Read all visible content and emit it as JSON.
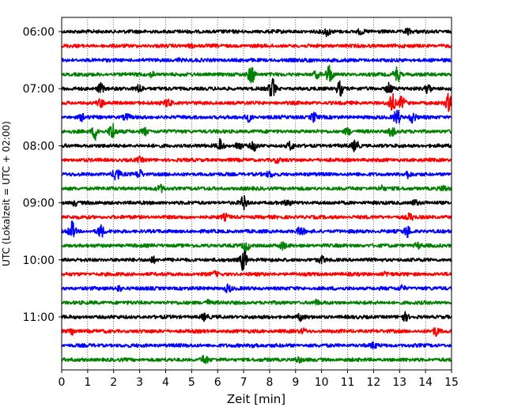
{
  "chart_data": {
    "type": "line",
    "title": "",
    "xlabel": "Zeit  [min]",
    "ylabel": "UTC (Lokalzeit = UTC + 02:00)",
    "xlim": [
      0,
      15
    ],
    "x_ticks": [
      "0",
      "1",
      "2",
      "3",
      "4",
      "5",
      "6",
      "7",
      "8",
      "9",
      "10",
      "11",
      "12",
      "13",
      "14",
      "15"
    ],
    "y_ticks": [
      "06:00",
      "07:00",
      "08:00",
      "09:00",
      "10:00",
      "11:00"
    ],
    "grid": "vertical dotted lines at each minute",
    "trace_interval_minutes": 15,
    "trace_colors": [
      "#000000",
      "#ff0000",
      "#0000ff",
      "#008000"
    ],
    "series": [
      {
        "start": "06:00",
        "color": "#000000",
        "events": [
          [
            10.2,
            0.6
          ],
          [
            11.5,
            0.35
          ],
          [
            13.3,
            0.45
          ]
        ]
      },
      {
        "start": "06:15",
        "color": "#ff0000",
        "events": [
          [
            5.0,
            0.25
          ]
        ]
      },
      {
        "start": "06:30",
        "color": "#0000ff",
        "events": [
          [
            4.5,
            0.2
          ],
          [
            9.5,
            0.2
          ]
        ]
      },
      {
        "start": "06:45",
        "color": "#008000",
        "events": [
          [
            7.3,
            1.6
          ],
          [
            10.3,
            1.5
          ],
          [
            12.9,
            1.3
          ],
          [
            3.5,
            0.4
          ],
          [
            9.8,
            0.5
          ]
        ]
      },
      {
        "start": "07:00",
        "color": "#000000",
        "events": [
          [
            1.5,
            0.8
          ],
          [
            3.0,
            0.7
          ],
          [
            8.1,
            1.6
          ],
          [
            10.7,
            1.2
          ],
          [
            12.6,
            0.9
          ],
          [
            14.1,
            0.7
          ]
        ]
      },
      {
        "start": "07:15",
        "color": "#ff0000",
        "events": [
          [
            1.5,
            0.6
          ],
          [
            4.1,
            0.7
          ],
          [
            12.7,
            1.5
          ],
          [
            13.1,
            1.0
          ],
          [
            14.9,
            1.4
          ]
        ]
      },
      {
        "start": "07:30",
        "color": "#0000ff",
        "events": [
          [
            0.8,
            0.5
          ],
          [
            2.5,
            0.5
          ],
          [
            7.2,
            0.6
          ],
          [
            9.7,
            0.7
          ],
          [
            12.9,
            1.3
          ],
          [
            13.5,
            0.8
          ]
        ]
      },
      {
        "start": "07:45",
        "color": "#008000",
        "events": [
          [
            1.3,
            1.3
          ],
          [
            1.95,
            1.4
          ],
          [
            3.2,
            0.6
          ],
          [
            11.0,
            0.5
          ],
          [
            12.7,
            0.8
          ]
        ]
      },
      {
        "start": "08:00",
        "color": "#000000",
        "events": [
          [
            6.1,
            1.0
          ],
          [
            6.8,
            0.6
          ],
          [
            7.4,
            0.7
          ],
          [
            8.8,
            0.6
          ],
          [
            11.3,
            0.9
          ]
        ]
      },
      {
        "start": "08:15",
        "color": "#ff0000",
        "events": [
          [
            3.0,
            0.3
          ],
          [
            8.3,
            0.3
          ]
        ]
      },
      {
        "start": "08:30",
        "color": "#0000ff",
        "events": [
          [
            2.1,
            1.2
          ],
          [
            3.0,
            0.7
          ],
          [
            8.0,
            0.4
          ],
          [
            13.3,
            0.5
          ]
        ]
      },
      {
        "start": "08:45",
        "color": "#008000",
        "events": [
          [
            3.8,
            0.5
          ],
          [
            12.3,
            0.4
          ],
          [
            14.7,
            0.4
          ]
        ]
      },
      {
        "start": "09:00",
        "color": "#000000",
        "events": [
          [
            0.5,
            0.4
          ],
          [
            7.0,
            1.0
          ],
          [
            8.7,
            0.4
          ],
          [
            13.6,
            0.4
          ]
        ]
      },
      {
        "start": "09:15",
        "color": "#ff0000",
        "events": [
          [
            6.3,
            0.4
          ],
          [
            13.4,
            0.5
          ]
        ]
      },
      {
        "start": "09:30",
        "color": "#0000ff",
        "events": [
          [
            0.4,
            1.5
          ],
          [
            1.5,
            1.0
          ],
          [
            9.2,
            0.7
          ],
          [
            13.3,
            0.9
          ]
        ]
      },
      {
        "start": "09:45",
        "color": "#008000",
        "events": [
          [
            7.1,
            0.8
          ],
          [
            8.5,
            0.5
          ],
          [
            13.7,
            0.4
          ]
        ]
      },
      {
        "start": "10:00",
        "color": "#000000",
        "events": [
          [
            7.0,
            1.8
          ],
          [
            3.5,
            0.5
          ],
          [
            10.0,
            0.5
          ]
        ]
      },
      {
        "start": "10:15",
        "color": "#ff0000",
        "events": [
          [
            5.9,
            0.3
          ],
          [
            12.5,
            0.3
          ]
        ]
      },
      {
        "start": "10:30",
        "color": "#0000ff",
        "events": [
          [
            6.4,
            0.6
          ],
          [
            2.2,
            0.4
          ],
          [
            13.1,
            0.4
          ]
        ]
      },
      {
        "start": "10:45",
        "color": "#008000",
        "events": [
          [
            5.6,
            0.4
          ],
          [
            9.8,
            0.3
          ]
        ]
      },
      {
        "start": "11:00",
        "color": "#000000",
        "events": [
          [
            5.5,
            0.5
          ],
          [
            9.2,
            0.5
          ],
          [
            13.2,
            0.6
          ]
        ]
      },
      {
        "start": "11:15",
        "color": "#ff0000",
        "events": [
          [
            0.4,
            0.6
          ],
          [
            14.4,
            0.6
          ],
          [
            9.3,
            0.3
          ]
        ]
      },
      {
        "start": "11:30",
        "color": "#0000ff",
        "events": [
          [
            7.4,
            0.4
          ],
          [
            12.0,
            0.4
          ]
        ]
      },
      {
        "start": "11:45",
        "color": "#008000",
        "events": [
          [
            5.5,
            0.7
          ],
          [
            9.1,
            0.4
          ]
        ]
      }
    ]
  }
}
